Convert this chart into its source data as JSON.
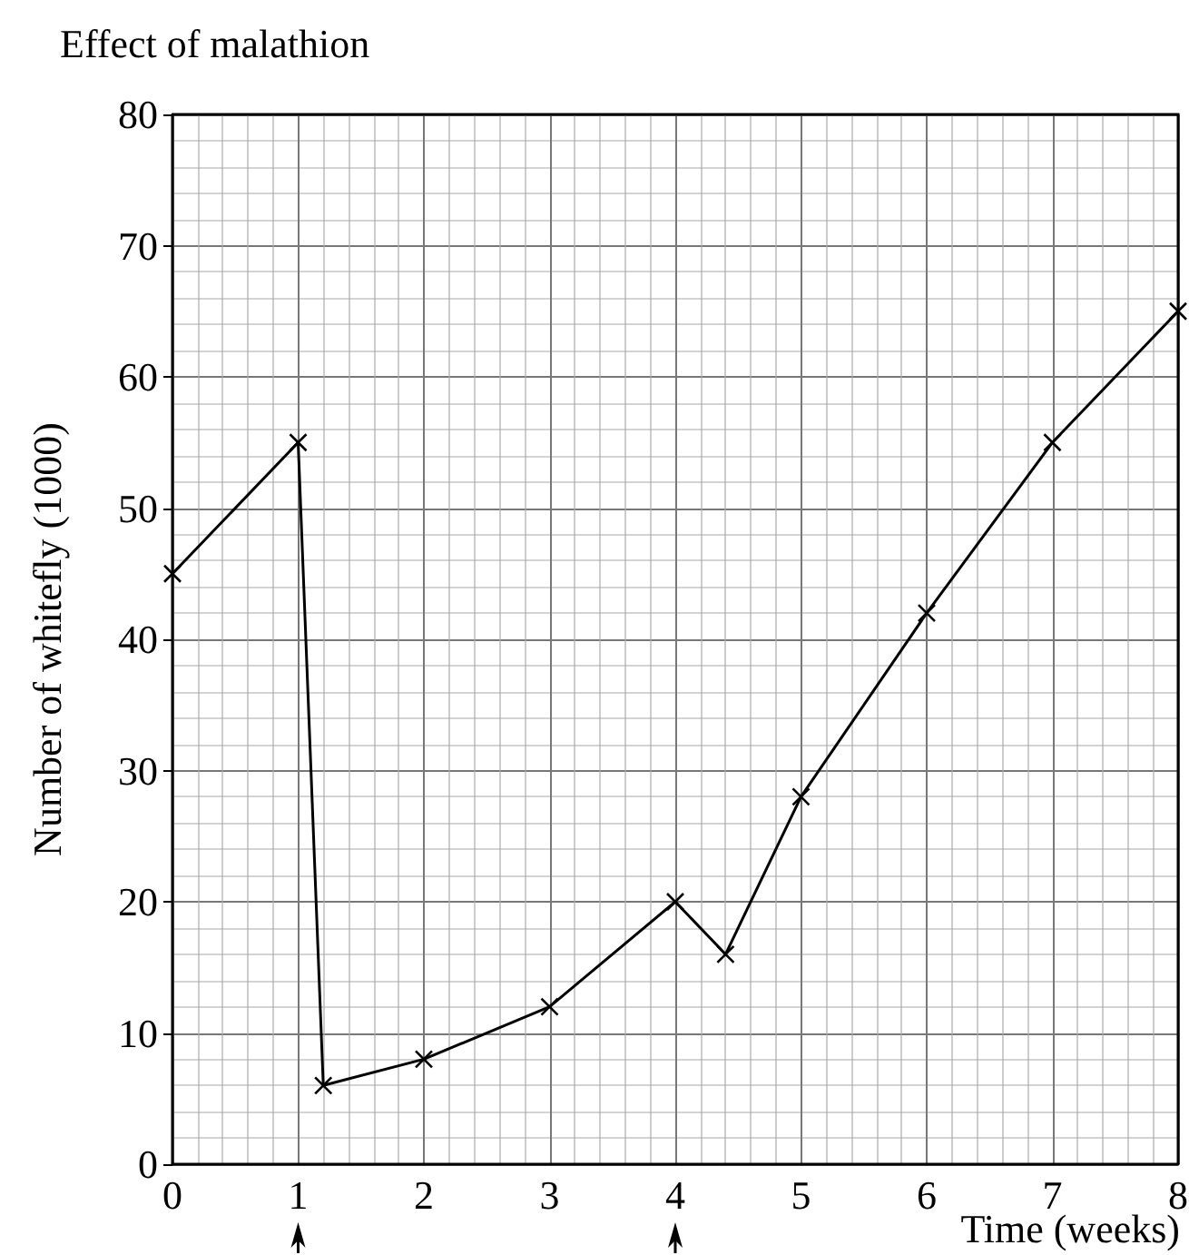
{
  "chart_data": {
    "type": "line",
    "title": "Effect of malathion",
    "xlabel": "Time (weeks)",
    "ylabel": "Number of whitefly (1000)",
    "x": [
      0,
      1,
      1.2,
      2,
      3,
      4,
      4.4,
      5,
      6,
      7,
      8
    ],
    "series": [
      {
        "color": "#000000",
        "values": [
          45,
          55,
          6,
          8,
          12,
          20,
          16,
          28,
          42,
          55,
          65
        ]
      }
    ],
    "xlim": [
      0,
      8
    ],
    "xticks": [
      0,
      1,
      2,
      3,
      4,
      5,
      6,
      7,
      8
    ],
    "ylim": [
      0,
      80
    ],
    "yticks": [
      0,
      10,
      20,
      30,
      40,
      50,
      60,
      70,
      80
    ],
    "grid": true,
    "marker": "cross",
    "line_style": "solid"
  }
}
